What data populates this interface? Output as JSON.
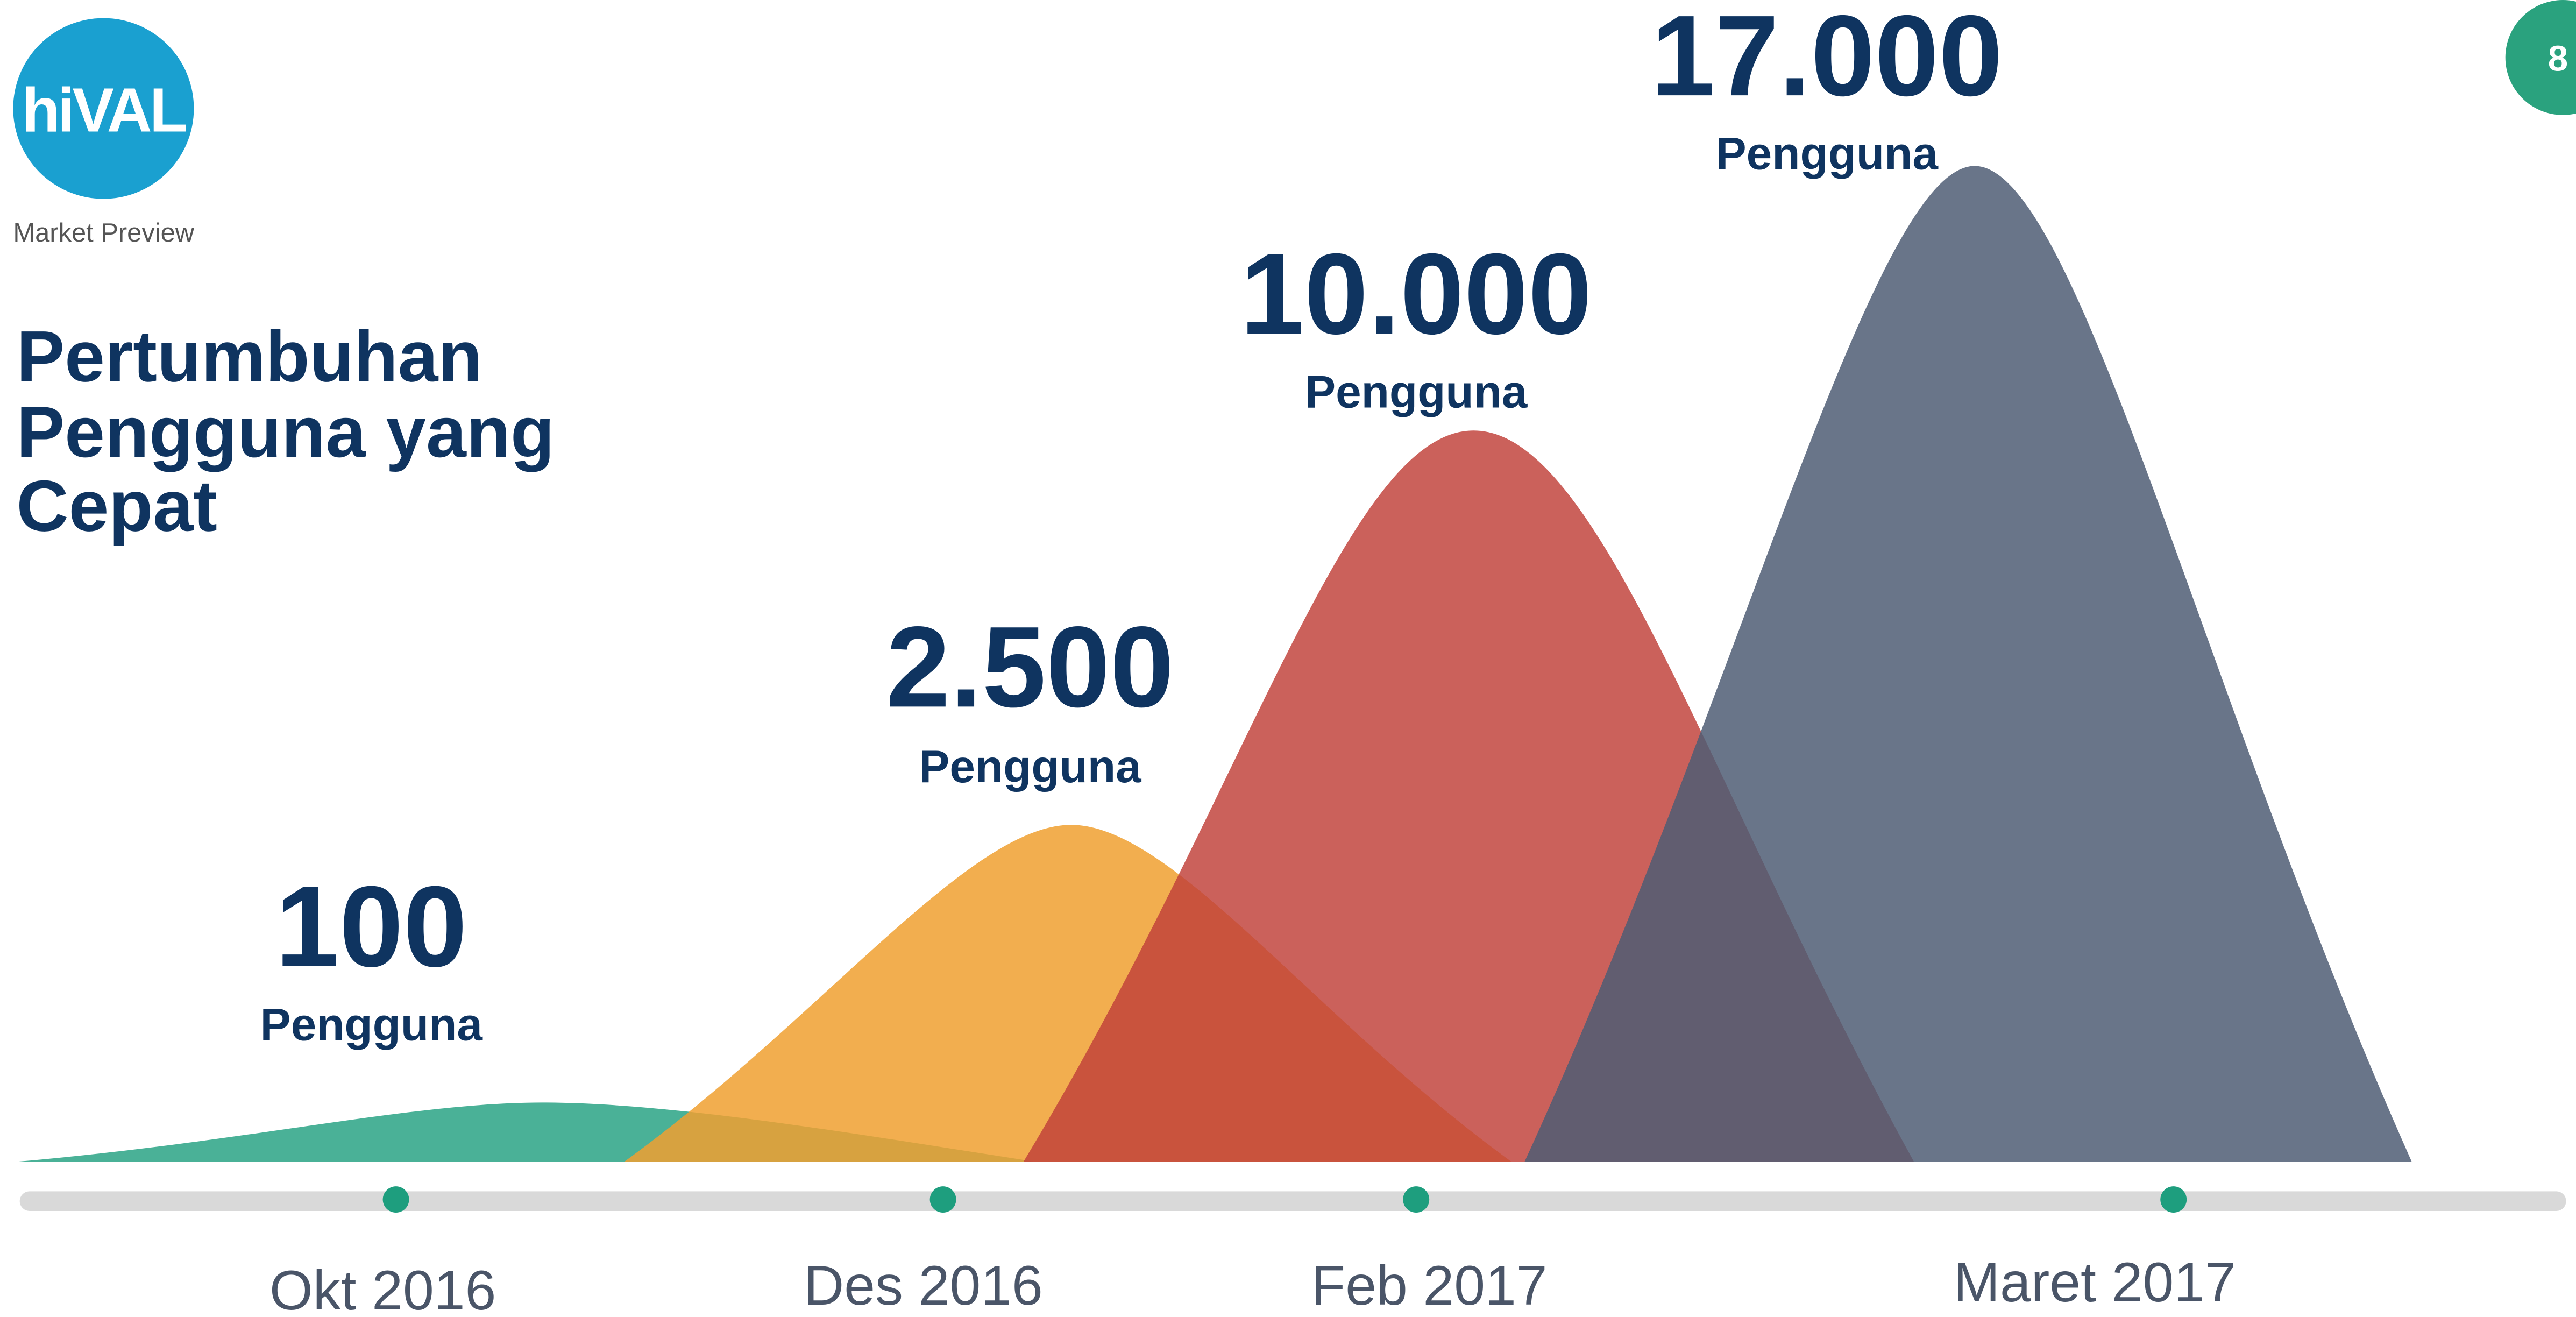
{
  "logo": {
    "name": "hiVAL",
    "subtitle": "Market Preview"
  },
  "page_number": "8",
  "title": {
    "lines": [
      "Pertumbuhan",
      "Pengguna yang",
      "Cepat"
    ]
  },
  "milestones": [
    {
      "value": "100",
      "unit": "Pengguna",
      "date": "Okt 2016"
    },
    {
      "value": "2.500",
      "unit": "Pengguna",
      "date": "Des 2016"
    },
    {
      "value": "10.000",
      "unit": "Pengguna",
      "date": "Feb 2017"
    },
    {
      "value": "17.000",
      "unit": "Pengguna",
      "date": "Maret 2017"
    }
  ]
}
